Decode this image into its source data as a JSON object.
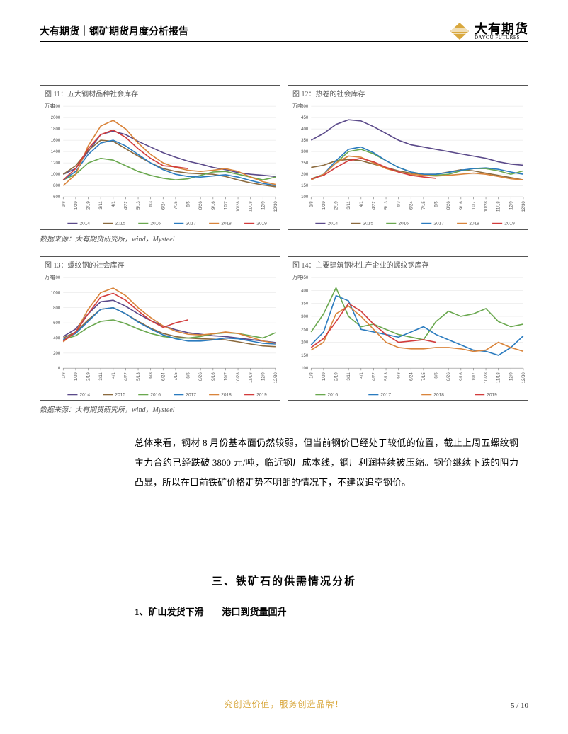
{
  "header": {
    "title": "大有期货｜钢矿期货月度分析报告",
    "logo_cn": "大有期货",
    "logo_en": "DAYOU FUTURES",
    "logo_color": "#d9a83e"
  },
  "charts": {
    "xticks": [
      "1/8",
      "1/29",
      "2/19",
      "3/11",
      "4/1",
      "4/22",
      "5/13",
      "6/3",
      "6/24",
      "7/15",
      "8/5",
      "8/26",
      "9/16",
      "10/7",
      "10/28",
      "11/18",
      "12/9",
      "12/30"
    ],
    "source_a": "数据来源：大有期货研究所，wind，Mysteel",
    "source_b": "数据来源：大有期货研究所，wind，Mysteel",
    "colors": {
      "2014": "#5b4a8a",
      "2015": "#8b6a3e",
      "2016": "#6aa84f",
      "2017": "#2a7bbf",
      "2018": "#d9843b",
      "2019": "#d23c3c",
      "grid": "#e0e0e0",
      "bg": "#ffffff"
    },
    "c11": {
      "title": "图 11：五大钢材品种社会库存",
      "y_title": "万吨",
      "ylim": [
        600,
        2200
      ],
      "ytick_step": 200,
      "series": {
        "2014": [
          1000,
          1100,
          1400,
          1700,
          1760,
          1700,
          1580,
          1480,
          1380,
          1300,
          1230,
          1180,
          1120,
          1080,
          1030,
          1000,
          980,
          960
        ],
        "2015": [
          1000,
          1150,
          1420,
          1600,
          1580,
          1450,
          1320,
          1200,
          1100,
          1050,
          1020,
          1010,
          1000,
          960,
          900,
          850,
          810,
          780
        ],
        "2016": [
          900,
          1000,
          1200,
          1280,
          1250,
          1150,
          1050,
          980,
          930,
          900,
          920,
          980,
          1040,
          1050,
          1000,
          950,
          900,
          950
        ],
        "2017": [
          900,
          1050,
          1350,
          1550,
          1600,
          1500,
          1350,
          1200,
          1080,
          1000,
          960,
          950,
          970,
          990,
          950,
          890,
          840,
          800
        ],
        "2018": [
          800,
          1000,
          1500,
          1850,
          1950,
          1800,
          1550,
          1350,
          1200,
          1120,
          1070,
          1050,
          1070,
          1100,
          1050,
          950,
          870,
          820
        ],
        "2019": [
          900,
          1100,
          1450,
          1700,
          1780,
          1650,
          1450,
          1280,
          1150,
          1130,
          1100
        ]
      },
      "legend": [
        "2014",
        "2015",
        "2016",
        "2017",
        "2018",
        "2019"
      ]
    },
    "c12": {
      "title": "图 12：热卷的社会库存",
      "y_title": "万吨",
      "ylim": [
        100,
        500
      ],
      "ytick_step": 50,
      "series": {
        "2014": [
          350,
          380,
          420,
          440,
          435,
          410,
          380,
          350,
          330,
          320,
          310,
          300,
          290,
          280,
          270,
          255,
          245,
          240
        ],
        "2015": [
          230,
          240,
          260,
          265,
          260,
          245,
          230,
          215,
          205,
          200,
          200,
          210,
          220,
          215,
          205,
          195,
          185,
          175
        ],
        "2016": [
          180,
          200,
          250,
          300,
          310,
          290,
          260,
          230,
          210,
          200,
          195,
          200,
          215,
          225,
          225,
          215,
          200,
          215
        ],
        "2017": [
          175,
          200,
          260,
          310,
          320,
          295,
          260,
          230,
          210,
          200,
          200,
          208,
          218,
          225,
          228,
          222,
          210,
          200
        ],
        "2018": [
          175,
          200,
          250,
          280,
          275,
          250,
          225,
          210,
          200,
          195,
          192,
          195,
          200,
          205,
          200,
          190,
          180,
          175
        ],
        "2019": [
          180,
          195,
          230,
          260,
          270,
          255,
          230,
          210,
          195,
          188,
          182
        ]
      },
      "legend": [
        "2014",
        "2015",
        "2016",
        "2017",
        "2018",
        "2019"
      ]
    },
    "c13": {
      "title": "图 13：螺纹钢的社会库存",
      "y_title": "万吨",
      "ylim": [
        0,
        1200
      ],
      "ytick_step": 200,
      "series": {
        "2014": [
          420,
          520,
          720,
          880,
          900,
          820,
          720,
          630,
          560,
          510,
          470,
          450,
          430,
          420,
          400,
          380,
          360,
          340
        ],
        "2015": [
          400,
          480,
          640,
          780,
          800,
          720,
          620,
          530,
          460,
          420,
          400,
          390,
          385,
          375,
          350,
          320,
          295,
          285
        ],
        "2016": [
          380,
          430,
          540,
          620,
          640,
          590,
          520,
          460,
          420,
          400,
          400,
          420,
          455,
          470,
          460,
          430,
          400,
          470
        ],
        "2017": [
          380,
          460,
          620,
          780,
          800,
          720,
          610,
          520,
          440,
          390,
          360,
          360,
          375,
          400,
          390,
          360,
          330,
          320
        ],
        "2018": [
          350,
          480,
          780,
          1000,
          1060,
          960,
          800,
          670,
          560,
          490,
          450,
          440,
          455,
          480,
          460,
          410,
          360,
          330
        ],
        "2019": [
          360,
          480,
          720,
          940,
          990,
          900,
          760,
          630,
          540,
          600,
          640
        ]
      },
      "legend": [
        "2014",
        "2015",
        "2016",
        "2017",
        "2018",
        "2019"
      ]
    },
    "c14": {
      "title": "图 14：主要建筑钢材生产企业的螺纹钢库存",
      "y_title": "万吨",
      "ylim": [
        100,
        450
      ],
      "ytick_step": 50,
      "series": {
        "2016": [
          240,
          310,
          410,
          300,
          260,
          270,
          250,
          230,
          220,
          210,
          280,
          320,
          300,
          310,
          330,
          280,
          260,
          270
        ],
        "2017": [
          190,
          240,
          380,
          360,
          250,
          240,
          230,
          220,
          240,
          260,
          230,
          210,
          190,
          170,
          165,
          150,
          180,
          225
        ],
        "2018": [
          170,
          200,
          310,
          340,
          300,
          250,
          200,
          180,
          175,
          175,
          180,
          180,
          175,
          165,
          170,
          200,
          180,
          165
        ],
        "2019": [
          180,
          215,
          280,
          350,
          320,
          270,
          230,
          200,
          205,
          210,
          200
        ]
      },
      "legend": [
        "2016",
        "2017",
        "2018",
        "2019"
      ]
    }
  },
  "body_text": "总体来看，钢材 8 月份基本面仍然较弱，但当前钢价已经处于较低的位置，截止上周五螺纹钢主力合约已经跌破 3800 元/吨，临近钢厂成本线，钢厂利润持续被压缩。钢价继续下跌的阻力凸显，所以在目前铁矿价格走势不明朗的情况下，不建议追空钢价。",
  "section_heading": "三、铁矿石的供需情况分析",
  "sub_heading": "1、矿山发货下滑  港口到货量回升",
  "footer": {
    "tagline": "究创造价值，服务创造品牌！",
    "page_current": "5",
    "page_total": "10"
  }
}
